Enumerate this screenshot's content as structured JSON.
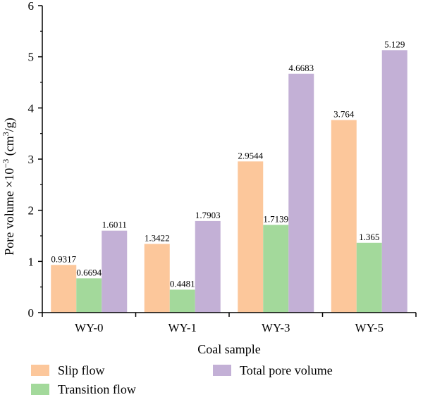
{
  "chart_data": {
    "type": "bar",
    "categories": [
      "WY-0",
      "WY-1",
      "WY-3",
      "WY-5"
    ],
    "series": [
      {
        "name": "Slip flow",
        "values": [
          0.9317,
          1.3422,
          2.9544,
          3.764
        ],
        "labels": [
          "0.9317",
          "1.3422",
          "2.9544",
          "3.764"
        ],
        "color": "#fcc79b"
      },
      {
        "name": "Transition flow",
        "values": [
          0.6694,
          0.4481,
          1.7139,
          1.365
        ],
        "labels": [
          "0.6694",
          "0.4481",
          "1.7139",
          "1.365"
        ],
        "color": "#a3d99b"
      },
      {
        "name": "Total pore volume",
        "values": [
          1.6011,
          1.7903,
          4.6683,
          5.129
        ],
        "labels": [
          "1.6011",
          "1.7903",
          "4.6683",
          "5.129"
        ],
        "color": "#c3b0d6"
      }
    ],
    "xlabel": "Coal sample",
    "ylabel_prefix": "Pore volume ×10",
    "ylabel_exp": "−3",
    "ylabel_unit_pre": " (cm",
    "ylabel_unit_exp": "3",
    "ylabel_unit_post": "/g)",
    "ylim": [
      0,
      6
    ],
    "yticks": [
      "0",
      "1",
      "2",
      "3",
      "4",
      "5",
      "6"
    ],
    "grid": false,
    "legend_position": "bottom"
  }
}
